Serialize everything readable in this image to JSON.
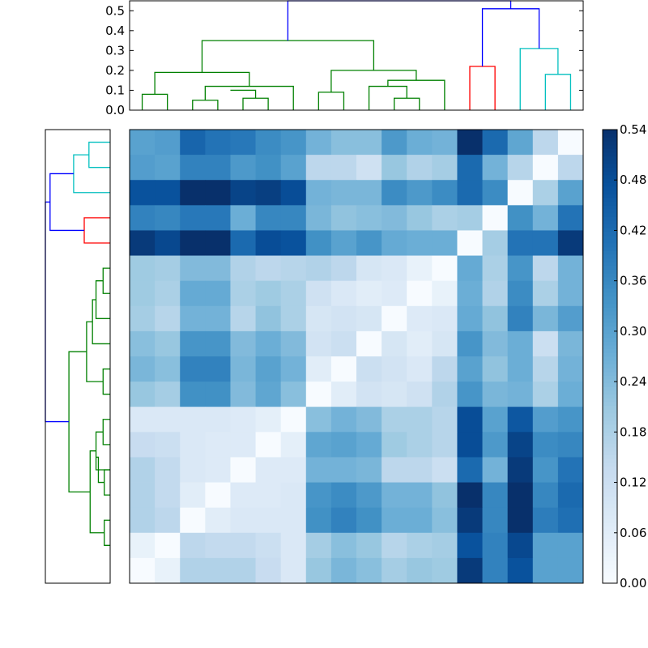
{
  "chart_data": {
    "type": "heatmap",
    "title": "",
    "xlabel": "",
    "ylabel": "",
    "colormap": "Blues",
    "colors": {
      "ramp": [
        "#f7fbff",
        "#deebf7",
        "#c6dbef",
        "#9ecae1",
        "#6baed6",
        "#4292c6",
        "#2171b5",
        "#08519c",
        "#08306b"
      ]
    },
    "value_range": [
      0,
      0.54
    ],
    "colorbar": {
      "ticks": [
        0,
        0.06,
        0.12,
        0.18,
        0.24,
        0.3,
        0.36,
        0.42,
        0.48,
        0.54
      ],
      "tick_labels": [
        "0.00",
        "0.06",
        "0.12",
        "0.18",
        "0.24",
        "0.30",
        "0.36",
        "0.42",
        "0.48",
        "0.54"
      ]
    },
    "matrix": [
      [
        0.3,
        0.31,
        0.43,
        0.4,
        0.39,
        0.35,
        0.33,
        0.26,
        0.23,
        0.23,
        0.32,
        0.27,
        0.26,
        0.54,
        0.42,
        0.29,
        0.15,
        0.0
      ],
      [
        0.31,
        0.3,
        0.37,
        0.37,
        0.32,
        0.34,
        0.3,
        0.15,
        0.15,
        0.11,
        0.21,
        0.17,
        0.19,
        0.42,
        0.26,
        0.16,
        0.0,
        0.15
      ],
      [
        0.47,
        0.47,
        0.54,
        0.54,
        0.5,
        0.51,
        0.48,
        0.26,
        0.25,
        0.25,
        0.35,
        0.32,
        0.35,
        0.42,
        0.35,
        0.0,
        0.18,
        0.3
      ],
      [
        0.37,
        0.36,
        0.39,
        0.39,
        0.27,
        0.36,
        0.36,
        0.25,
        0.22,
        0.23,
        0.24,
        0.21,
        0.18,
        0.19,
        0.0,
        0.34,
        0.26,
        0.4
      ],
      [
        0.52,
        0.49,
        0.54,
        0.54,
        0.42,
        0.48,
        0.47,
        0.34,
        0.3,
        0.33,
        0.28,
        0.27,
        0.27,
        0.0,
        0.19,
        0.4,
        0.4,
        0.52
      ],
      [
        0.2,
        0.19,
        0.24,
        0.24,
        0.17,
        0.15,
        0.16,
        0.17,
        0.15,
        0.09,
        0.08,
        0.04,
        0.0,
        0.28,
        0.18,
        0.33,
        0.15,
        0.26
      ],
      [
        0.2,
        0.18,
        0.28,
        0.28,
        0.18,
        0.2,
        0.18,
        0.11,
        0.08,
        0.06,
        0.07,
        0.0,
        0.04,
        0.27,
        0.17,
        0.35,
        0.18,
        0.26
      ],
      [
        0.19,
        0.16,
        0.26,
        0.26,
        0.16,
        0.22,
        0.18,
        0.09,
        0.1,
        0.09,
        0.0,
        0.07,
        0.08,
        0.28,
        0.22,
        0.37,
        0.25,
        0.31
      ],
      [
        0.23,
        0.21,
        0.33,
        0.33,
        0.24,
        0.27,
        0.24,
        0.1,
        0.12,
        0.0,
        0.09,
        0.06,
        0.09,
        0.33,
        0.24,
        0.27,
        0.12,
        0.25
      ],
      [
        0.25,
        0.23,
        0.37,
        0.37,
        0.25,
        0.3,
        0.26,
        0.06,
        0.0,
        0.12,
        0.1,
        0.08,
        0.15,
        0.3,
        0.22,
        0.27,
        0.16,
        0.26
      ],
      [
        0.21,
        0.19,
        0.34,
        0.34,
        0.24,
        0.29,
        0.23,
        0.0,
        0.06,
        0.1,
        0.09,
        0.11,
        0.17,
        0.33,
        0.25,
        0.26,
        0.18,
        0.27
      ],
      [
        0.08,
        0.08,
        0.08,
        0.08,
        0.07,
        0.05,
        0.0,
        0.23,
        0.26,
        0.24,
        0.18,
        0.18,
        0.16,
        0.48,
        0.3,
        0.46,
        0.31,
        0.33
      ],
      [
        0.13,
        0.12,
        0.08,
        0.07,
        0.07,
        0.0,
        0.05,
        0.29,
        0.3,
        0.28,
        0.2,
        0.18,
        0.16,
        0.48,
        0.32,
        0.5,
        0.35,
        0.36
      ],
      [
        0.17,
        0.14,
        0.08,
        0.07,
        0.0,
        0.07,
        0.07,
        0.26,
        0.26,
        0.25,
        0.15,
        0.15,
        0.12,
        0.42,
        0.26,
        0.52,
        0.33,
        0.4
      ],
      [
        0.17,
        0.14,
        0.06,
        0.0,
        0.07,
        0.07,
        0.08,
        0.33,
        0.35,
        0.32,
        0.26,
        0.26,
        0.22,
        0.54,
        0.36,
        0.54,
        0.36,
        0.42
      ],
      [
        0.17,
        0.15,
        0.0,
        0.06,
        0.08,
        0.08,
        0.08,
        0.34,
        0.37,
        0.34,
        0.27,
        0.27,
        0.23,
        0.52,
        0.36,
        0.54,
        0.38,
        0.41
      ],
      [
        0.04,
        0.0,
        0.15,
        0.14,
        0.14,
        0.12,
        0.08,
        0.19,
        0.23,
        0.21,
        0.16,
        0.18,
        0.19,
        0.47,
        0.37,
        0.49,
        0.3,
        0.3
      ],
      [
        0.0,
        0.04,
        0.17,
        0.17,
        0.17,
        0.13,
        0.08,
        0.21,
        0.25,
        0.23,
        0.19,
        0.21,
        0.2,
        0.52,
        0.37,
        0.47,
        0.3,
        0.3
      ]
    ],
    "top_dendrogram": {
      "y_ticks": [
        0.0,
        0.1,
        0.2,
        0.3,
        0.4,
        0.5
      ],
      "y_tick_labels": [
        "0.0",
        "0.1",
        "0.2",
        "0.3",
        "0.4",
        "0.5"
      ],
      "ylim": [
        0,
        0.55
      ],
      "leaf_count": 18,
      "links": [
        {
          "a": 0,
          "b": 1,
          "h": 0.08,
          "color": "green"
        },
        {
          "a": 2,
          "b": 3,
          "h": 0.05,
          "color": "green"
        },
        {
          "a": 4,
          "b": 5,
          "h": 0.06,
          "color": "green"
        },
        {
          "a": 3.5,
          "b": 4.5,
          "h": 0.1,
          "color": "green"
        },
        {
          "a": 2.5,
          "b": 6,
          "h": 0.12,
          "color": "green"
        },
        {
          "a": 0.5,
          "b": 4.25,
          "h": 0.19,
          "color": "green"
        },
        {
          "a": 7,
          "b": 8,
          "h": 0.09,
          "color": "green"
        },
        {
          "a": 10,
          "b": 11,
          "h": 0.06,
          "color": "green"
        },
        {
          "a": 9,
          "b": 10.5,
          "h": 0.12,
          "color": "green"
        },
        {
          "a": 9.75,
          "b": 12,
          "h": 0.15,
          "color": "green"
        },
        {
          "a": 7.5,
          "b": 10.875,
          "h": 0.2,
          "color": "green"
        },
        {
          "a": 2.375,
          "b": 9.1875,
          "h": 0.35,
          "color": "green"
        },
        {
          "a": 13,
          "b": 14,
          "h": 0.22,
          "color": "red"
        },
        {
          "a": 16,
          "b": 17,
          "h": 0.18,
          "color": "cyan"
        },
        {
          "a": 15,
          "b": 16.5,
          "h": 0.31,
          "color": "cyan"
        },
        {
          "a": 13.5,
          "b": 15.75,
          "h": 0.51,
          "color": "blue"
        },
        {
          "a": 5.78,
          "b": 14.625,
          "h": 0.55,
          "color": "blue"
        }
      ]
    },
    "left_dendrogram": {
      "leaf_count": 18,
      "dmax": 0.55,
      "links": [
        {
          "a": 0,
          "b": 1,
          "h": 0.18,
          "color": "cyan"
        },
        {
          "a": 0.5,
          "b": 2,
          "h": 0.31,
          "color": "cyan"
        },
        {
          "a": 3,
          "b": 4,
          "h": 0.22,
          "color": "red"
        },
        {
          "a": 1.25,
          "b": 3.5,
          "h": 0.51,
          "color": "blue"
        },
        {
          "a": 5,
          "b": 6,
          "h": 0.06,
          "color": "green"
        },
        {
          "a": 5.5,
          "b": 7,
          "h": 0.12,
          "color": "green"
        },
        {
          "a": 6.25,
          "b": 8,
          "h": 0.15,
          "color": "green"
        },
        {
          "a": 9,
          "b": 10,
          "h": 0.06,
          "color": "green"
        },
        {
          "a": 7.125,
          "b": 9.5,
          "h": 0.2,
          "color": "green"
        },
        {
          "a": 11,
          "b": 12,
          "h": 0.06,
          "color": "green"
        },
        {
          "a": 13,
          "b": 14,
          "h": 0.05,
          "color": "green"
        },
        {
          "a": 12.5,
          "b": 13.5,
          "h": 0.1,
          "color": "green"
        },
        {
          "a": 11.5,
          "b": 13,
          "h": 0.12,
          "color": "green"
        },
        {
          "a": 15,
          "b": 16,
          "h": 0.05,
          "color": "green"
        },
        {
          "a": 12.25,
          "b": 15.5,
          "h": 0.17,
          "color": "green"
        },
        {
          "a": 8.3125,
          "b": 13.875,
          "h": 0.35,
          "color": "green"
        },
        {
          "a": 2.375,
          "b": 11.09,
          "h": 0.55,
          "color": "blue"
        }
      ]
    }
  },
  "link_colors": {
    "green": "#008000",
    "red": "#ff0000",
    "cyan": "#00bfbf",
    "blue": "#0000ff"
  }
}
